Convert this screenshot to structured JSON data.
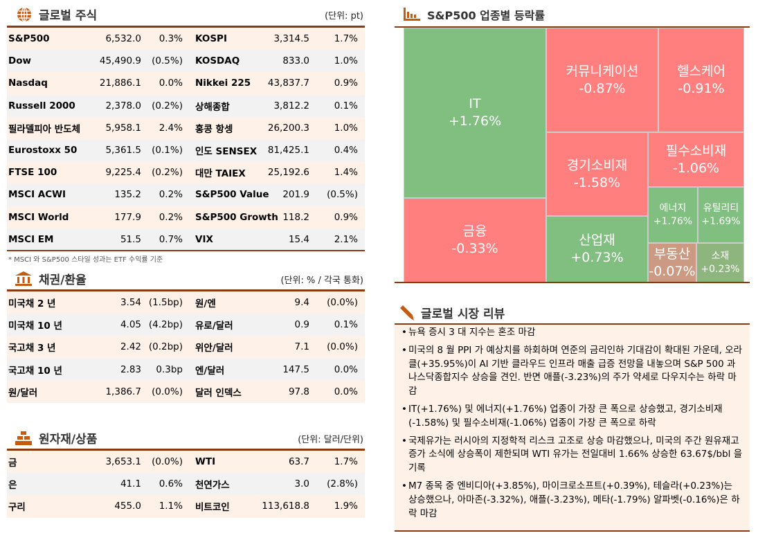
{
  "global_stocks": {
    "title": "글로벌 주식",
    "unit": "(단위: pt)",
    "rows": [
      [
        "S&P500",
        "6,532.0",
        "0.3%",
        "KOSPI",
        "3,314.5",
        "1.7%"
      ],
      [
        "Dow",
        "45,490.9",
        "(0.5%)",
        "KOSDAQ",
        "833.0",
        "1.0%"
      ],
      [
        "Nasdaq",
        "21,886.1",
        "0.0%",
        "Nikkei 225",
        "43,837.7",
        "0.9%"
      ],
      [
        "Russell 2000",
        "2,378.0",
        "(0.2%)",
        "상해종합",
        "3,812.2",
        "0.1%"
      ],
      [
        "필라델피아 반도체",
        "5,958.1",
        "2.4%",
        "홍콩 항셍",
        "26,200.3",
        "1.0%"
      ],
      [
        "Eurostoxx 50",
        "5,361.5",
        "(0.1%)",
        "인도 SENSEX",
        "81,425.1",
        "0.4%"
      ],
      [
        "FTSE 100",
        "9,225.4",
        "(0.2%)",
        "대만 TAIEX",
        "25,192.6",
        "1.4%"
      ],
      [
        "MSCI ACWI",
        "135.2",
        "0.2%",
        "S&P500 Value",
        "201.9",
        "(0.5%)"
      ],
      [
        "MSCI World",
        "177.9",
        "0.2%",
        "S&P500 Growth",
        "118.2",
        "0.9%"
      ],
      [
        "MSCI EM",
        "51.5",
        "0.7%",
        "VIX",
        "15.4",
        "2.1%"
      ]
    ],
    "note": "* MSCI 와 S&P500 스타일 성과는 ETF 수익률 기준"
  },
  "bonds_fx": {
    "title": "채권/환율",
    "unit": "(단위: % / 각국 통화)",
    "rows": [
      [
        "미국채 2 년",
        "3.54",
        "(1.5bp)",
        "원/엔",
        "9.4",
        "(0.0%)"
      ],
      [
        "미국채 10 년",
        "4.05",
        "(4.2bp)",
        "유로/달러",
        "0.9",
        "0.1%"
      ],
      [
        "국고채 3 년",
        "2.42",
        "(0.2bp)",
        "위안/달러",
        "7.1",
        "(0.0%)"
      ],
      [
        "국고채 10 년",
        "2.83",
        "0.3bp",
        "엔/달러",
        "147.5",
        "0.0%"
      ],
      [
        "원/달러",
        "1,386.7",
        "(0.0%)",
        "달러 인덱스",
        "97.8",
        "0.0%"
      ]
    ]
  },
  "commodities": {
    "title": "원자재/상품",
    "unit": "(단위: 달러/단위)",
    "rows": [
      [
        "금",
        "3,653.1",
        "(0.0%)",
        "WTI",
        "63.7",
        "1.7%"
      ],
      [
        "은",
        "41.1",
        "0.6%",
        "천연가스",
        "3.0",
        "(2.8%)"
      ],
      [
        "구리",
        "455.0",
        "1.1%",
        "비트코인",
        "113,618.8",
        "1.9%"
      ]
    ]
  },
  "treemap": {
    "title": "S&P500 업종별 등락률",
    "colors": {
      "up": "#80bf80",
      "down": "#ff7f7f",
      "flat_down": "#cc9a82",
      "flat_up": "#8fb57f"
    },
    "sectors": [
      {
        "name": "IT",
        "change": "+1.76%"
      },
      {
        "name": "금융",
        "change": "-0.33%"
      },
      {
        "name": "커뮤니케이션",
        "change": "-0.87%"
      },
      {
        "name": "헬스케어",
        "change": "-0.91%"
      },
      {
        "name": "경기소비재",
        "change": "-1.58%"
      },
      {
        "name": "필수소비재",
        "change": "-1.06%"
      },
      {
        "name": "산업재",
        "change": "+0.73%"
      },
      {
        "name": "에너지",
        "change": "+1.76%"
      },
      {
        "name": "유틸리티",
        "change": "+1.69%"
      },
      {
        "name": "부동산",
        "change": "-0.07%"
      },
      {
        "name": "소재",
        "change": "+0.23%"
      }
    ]
  },
  "review": {
    "title": "글로벌 시장 리뷰",
    "items": [
      "뉴욕 증시 3 대 지수는 혼조 마감",
      "미국의 8 월 PPI 가 예상치를 하회하며 연준의 금리인하 기대감이 확대된 가운데, 오라클(+35.95%)이 AI 기반 클라우드 인프라 매출 급증 전망을 내놓으며 S&P 500 과 나스닥종합지수 상승을 견인. 반면 애플(-3.23%)의 주가 약세로 다우지수는 하락 마감",
      "IT(+1.76%) 및 에너지(+1.76%) 업종이 가장 큰 폭으로 상승했고, 경기소비재(-1.58%) 및 필수소비재(-1.06%) 업종이 가장 큰 폭으로 하락",
      "국제유가는 러시아의 지정학적 리스크 고조로 상승 마감했으나, 미국의 주간 원유재고 증가 소식에 상승폭이 제한되며 WTI 유가는 전일대비 1.66% 상승한 63.67$/bbl 을 기록",
      "M7 종목 중 엔비디아(+3.85%), 마이크로소프트(+0.39%), 테슬라(+0.23%)는 상승했으나, 아마존(-3.32%), 애플(-3.23%), 메타(-1.79%) 알파벳(-0.16%)은 하락 마감"
    ]
  }
}
